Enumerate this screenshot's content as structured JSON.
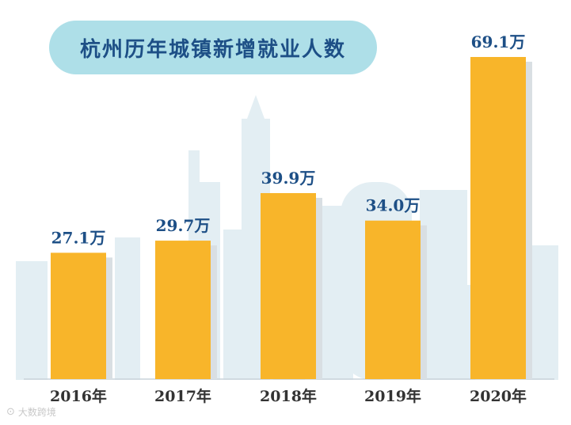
{
  "title": "杭州历年城镇新增就业人数",
  "watermark": {
    "logo_icon": "camera-logo-icon",
    "text": "大数跨境"
  },
  "colors": {
    "bar": "#f8b52a",
    "bar_shadow": "#d9dfe3",
    "label": "#1d4f86",
    "axis_label": "#333333",
    "title_bg": "#aedfe8",
    "skyline": "#e3eef3"
  },
  "chart_data": {
    "type": "bar",
    "title": "杭州历年城镇新增就业人数",
    "xlabel": "",
    "ylabel": "",
    "categories": [
      "2016年",
      "2017年",
      "2018年",
      "2019年",
      "2020年"
    ],
    "values": [
      27.1,
      29.7,
      39.9,
      34.0,
      69.1
    ],
    "data_labels": [
      "27.1万",
      "29.7万",
      "39.9万",
      "34.0万",
      "69.1万"
    ],
    "ylim": [
      0,
      69.1
    ],
    "grid": false,
    "legend": "none"
  }
}
